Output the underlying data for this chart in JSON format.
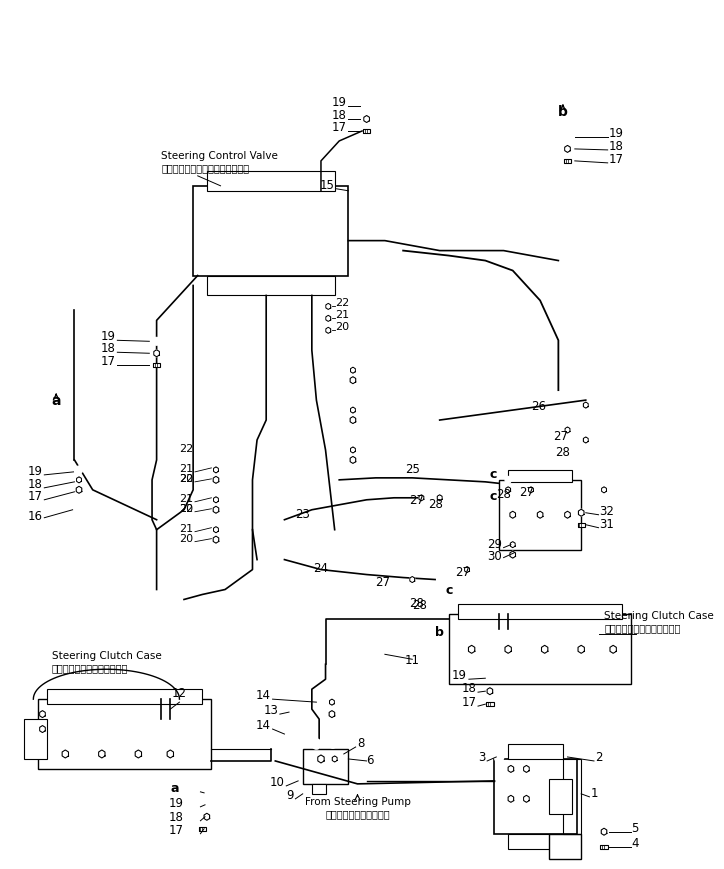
{
  "bg_color": "#ffffff",
  "line_color": "#000000",
  "text_color": "#000000",
  "fig_width": 7.24,
  "fig_height": 8.69,
  "dpi": 100,
  "labels": {
    "steering_clutch_case_jp_left": "ステアリングクラッチケース",
    "steering_clutch_case_en_left": "Steering Clutch Case",
    "steering_clutch_case_jp_right": "ステアリングクラッチケース",
    "steering_clutch_case_en_right": "Steering Clutch Case",
    "from_steering_pump_jp": "ステアリングポンプから",
    "from_steering_pump_en": "From Steering Pump",
    "steering_control_valve_jp": "ステアリングコントロールバルブ",
    "steering_control_valve_en": "Steering Control Valve"
  }
}
